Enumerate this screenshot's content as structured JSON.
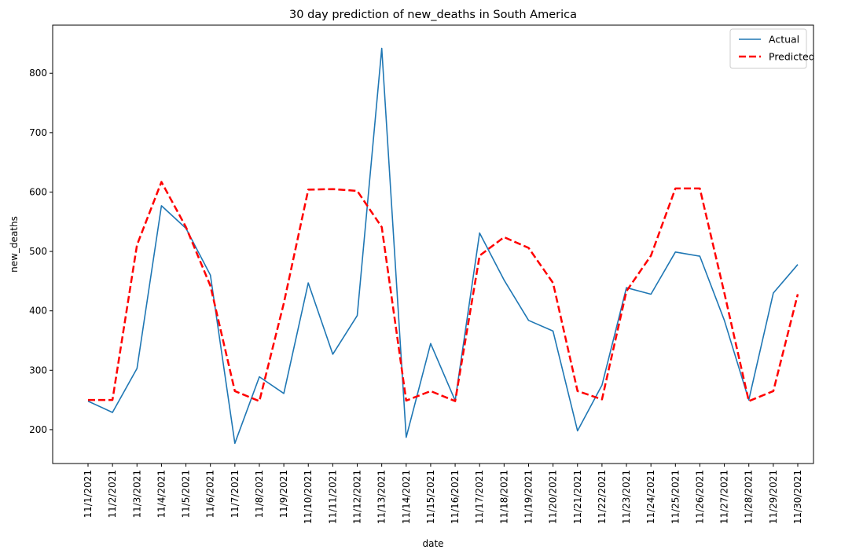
{
  "chart_data": {
    "type": "line",
    "title": "30 day prediction of new_deaths in South America",
    "xlabel": "date",
    "ylabel": "new_deaths",
    "ylim": [
      143,
      881
    ],
    "yticks": [
      200,
      300,
      400,
      500,
      600,
      700,
      800
    ],
    "grid": false,
    "legend_position": "top-right",
    "categories": [
      "11/1/2021",
      "11/2/2021",
      "11/3/2021",
      "11/4/2021",
      "11/5/2021",
      "11/6/2021",
      "11/7/2021",
      "11/8/2021",
      "11/9/2021",
      "11/10/2021",
      "11/11/2021",
      "11/12/2021",
      "11/13/2021",
      "11/14/2021",
      "11/15/2021",
      "11/16/2021",
      "11/17/2021",
      "11/18/2021",
      "11/19/2021",
      "11/20/2021",
      "11/21/2021",
      "11/22/2021",
      "11/23/2021",
      "11/24/2021",
      "11/25/2021",
      "11/26/2021",
      "11/27/2021",
      "11/28/2021",
      "11/29/2021",
      "11/30/2021"
    ],
    "series": [
      {
        "name": "Actual",
        "color": "#1f77b4",
        "style": "solid",
        "values": [
          248,
          229,
          303,
          577,
          539,
          460,
          177,
          289,
          261,
          447,
          327,
          392,
          842,
          187,
          345,
          249,
          531,
          452,
          384,
          366,
          198,
          275,
          439,
          428,
          499,
          492,
          384,
          250,
          430,
          478
        ]
      },
      {
        "name": "Predicted",
        "color": "#ff0000",
        "style": "dashed",
        "values": [
          250,
          250,
          511,
          617,
          541,
          442,
          265,
          248,
          413,
          604,
          605,
          602,
          541,
          249,
          265,
          248,
          493,
          524,
          506,
          447,
          265,
          251,
          433,
          493,
          606,
          606,
          430,
          248,
          265,
          428
        ]
      }
    ]
  }
}
